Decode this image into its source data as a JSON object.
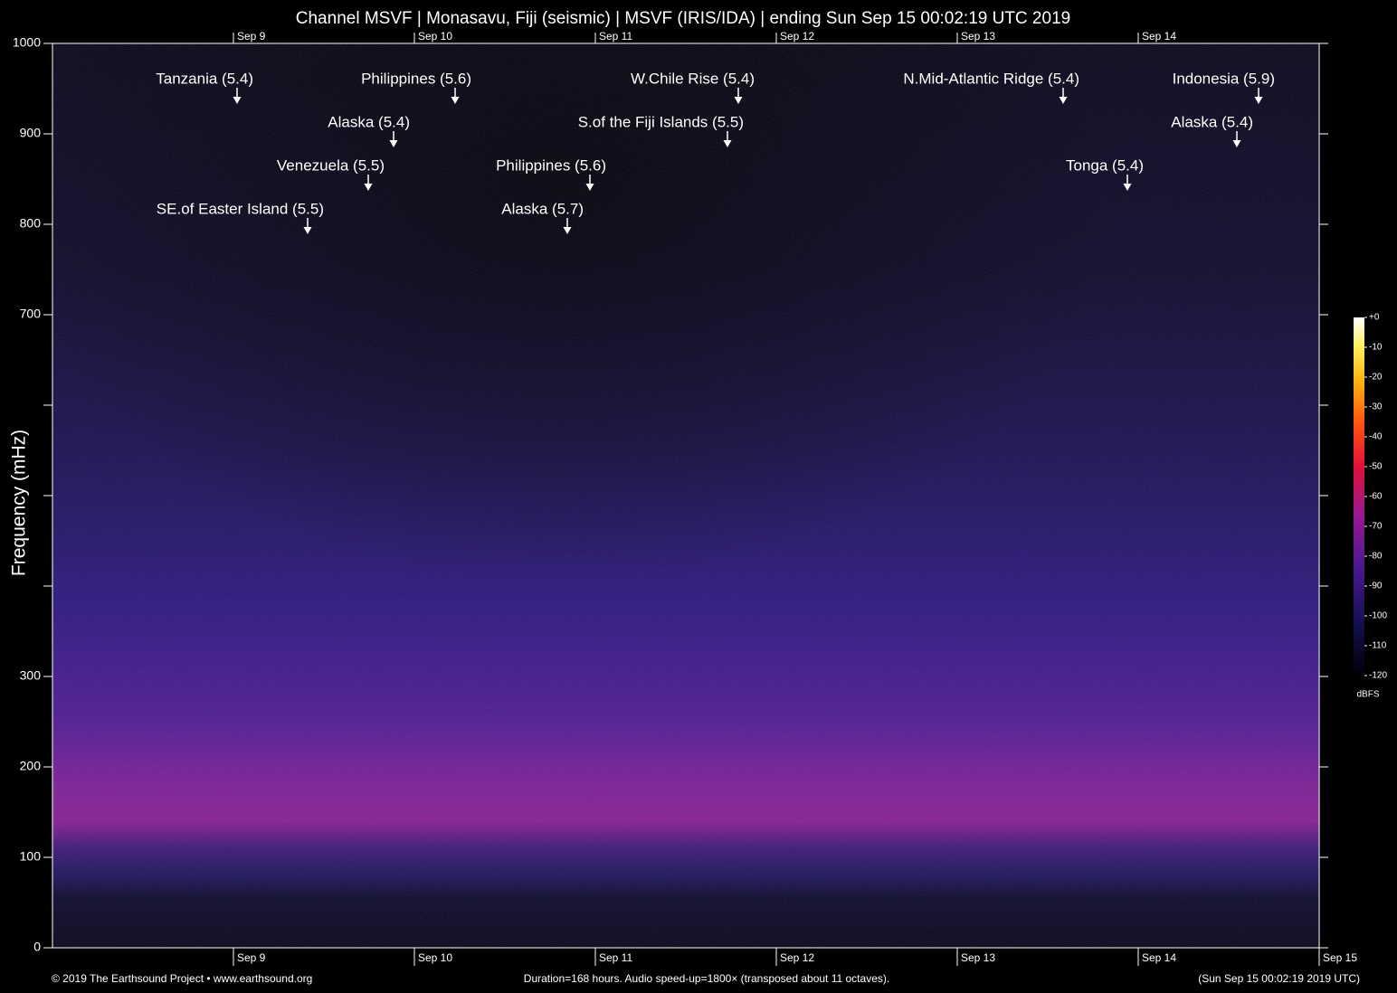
{
  "chart_data": {
    "type": "spectrogram",
    "title": "Channel MSVF | Monasavu, Fiji (seismic) | MSVF (IRIS/IDA) | ending Sun Sep 15 00:02:19 UTC 2019",
    "ylabel": "Frequency (mHz)",
    "ylim": [
      0,
      1000
    ],
    "yticks": [
      0,
      100,
      200,
      300,
      700,
      800,
      900,
      1000
    ],
    "y_unlabeled_ticks": [
      400,
      500,
      600
    ],
    "xlim": [
      8,
      15
    ],
    "xticks": [
      {
        "value": 9,
        "label": "Sep  9"
      },
      {
        "value": 10,
        "label": "Sep 10"
      },
      {
        "value": 11,
        "label": "Sep 11"
      },
      {
        "value": 12,
        "label": "Sep 12"
      },
      {
        "value": 13,
        "label": "Sep 13"
      },
      {
        "value": 14,
        "label": "Sep 14"
      },
      {
        "value": 15,
        "label": "Sep 15"
      }
    ],
    "events": [
      {
        "label": "Tanzania (5.4)",
        "x": 9.02
      },
      {
        "label": "Philippines (5.6)",
        "x": 10.225
      },
      {
        "label": "W.Chile Rise (5.4)",
        "x": 11.79
      },
      {
        "label": "N.Mid-Atlantic Ridge (5.4)",
        "x": 13.585
      },
      {
        "label": "Indonesia (5.9)",
        "x": 14.665
      },
      {
        "label": "Alaska (5.4)",
        "x": 9.885
      },
      {
        "label": "S.of the Fiji Islands (5.5)",
        "x": 11.73
      },
      {
        "label": "Alaska (5.4)",
        "x": 14.545
      },
      {
        "label": "Venezuela (5.5)",
        "x": 9.745
      },
      {
        "label": "Philippines (5.6)",
        "x": 10.97
      },
      {
        "label": "Tonga (5.4)",
        "x": 13.94
      },
      {
        "label": "SE.of Easter Island (5.5)",
        "x": 9.41
      },
      {
        "label": "Alaska (5.7)",
        "x": 10.845
      }
    ],
    "colorbar": {
      "label": "dBFS",
      "lim": [
        -120,
        0
      ],
      "ticks": [
        {
          "value": 0,
          "label": "+0"
        },
        -10,
        -20,
        -30,
        -40,
        -50,
        -60,
        -70,
        -80,
        -90,
        -100,
        -110,
        -120
      ]
    },
    "footer_left": "© 2019 The Earthsound Project • www.earthsound.org",
    "footer_center": "Duration=168 hours. Audio speed-up=1800× (transposed about 11 octaves).",
    "footer_right": "(Sun Sep 15 00:02:19 2019 UTC)"
  }
}
